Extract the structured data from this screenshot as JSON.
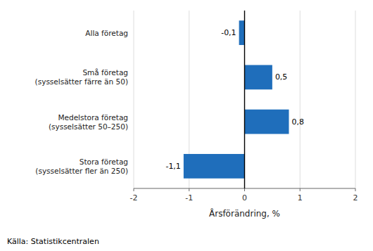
{
  "chart_data": {
    "type": "bar",
    "orientation": "horizontal",
    "categories": [
      "Stora företag\n(sysselsätter fler än 250)",
      "Medelstora företag\n(sysselsätter 50–250)",
      "Små företag\n(sysselsätter färre än 50)",
      "Alla företag"
    ],
    "values": [
      -1.1,
      0.8,
      0.5,
      -0.1
    ],
    "value_labels": [
      "-1,1",
      "0,8",
      "0,5",
      "-0,1"
    ],
    "data_labels": true,
    "color": "#1F6EBB",
    "xlabel": "Årsförändring, %",
    "xlim": [
      -2,
      2
    ],
    "xticks": [
      -2,
      -1,
      0,
      1,
      2
    ],
    "grid": true,
    "source": "Källa: Statistikcentralen"
  }
}
